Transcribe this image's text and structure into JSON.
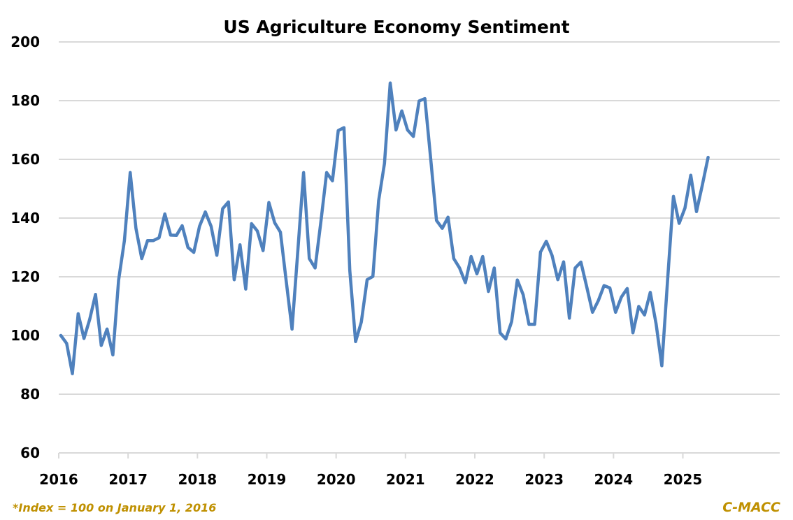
{
  "chart_data": {
    "type": "line",
    "title": "US Agriculture Economy Sentiment",
    "xlabel": "",
    "ylabel": "",
    "ylim": [
      60,
      200
    ],
    "yticks": [
      "60",
      "80",
      "100",
      "120",
      "140",
      "160",
      "180",
      "200"
    ],
    "xticks": [
      "2016",
      "2017",
      "2018",
      "2019",
      "2020",
      "2021",
      "2022",
      "2023",
      "2024",
      "2025"
    ],
    "x_start": "2016-01",
    "x_frequency": "monthly",
    "grid": true,
    "legend": "none",
    "series": [
      {
        "name": "US Agriculture Economy Sentiment Index",
        "color": "#4f81bd",
        "values": [
          100,
          97.3,
          87,
          107.4,
          99,
          105.5,
          114,
          96.6,
          102.2,
          93.4,
          118.8,
          132.3,
          155.5,
          136.5,
          126.2,
          132.3,
          132.3,
          133.3,
          141.4,
          134.2,
          134.1,
          137.4,
          130,
          128.3,
          137.2,
          142.1,
          137.2,
          127.3,
          143.2,
          145.5,
          119,
          130.9,
          115.8,
          138.1,
          135.6,
          128.9,
          145.3,
          138.4,
          135.2,
          118.5,
          102.2,
          128.5,
          155.5,
          126.2,
          123,
          138.8,
          155.5,
          152.7,
          169.8,
          170.8,
          122.2,
          97.9,
          104.6,
          119,
          120.1,
          146,
          158.6,
          186,
          170,
          176.5,
          170,
          167.8,
          179.9,
          180.7,
          160.2,
          139.2,
          136.5,
          140.3,
          126.2,
          123,
          118,
          126.9,
          121,
          126.9,
          115,
          123,
          100.9,
          98.8,
          104.7,
          118.9,
          113.9,
          103.8,
          103.8,
          128.4,
          132.1,
          127.3,
          119,
          125.1,
          105.9,
          123,
          125,
          116.6,
          107.9,
          111.8,
          117,
          116.2,
          107.9,
          113.1,
          116,
          100.9,
          109.9,
          107,
          114.7,
          104,
          89.7,
          119,
          147.4,
          138.2,
          143.4,
          154.6,
          142.2,
          151.2,
          160.7
        ]
      }
    ],
    "annotations": {
      "footnote": "*Index = 100 on January 1, 2016",
      "source": "C-MACC"
    }
  },
  "colors": {
    "line": "#4f81bd",
    "grid": "#d9d9d9",
    "annotation": "#bf9000"
  }
}
